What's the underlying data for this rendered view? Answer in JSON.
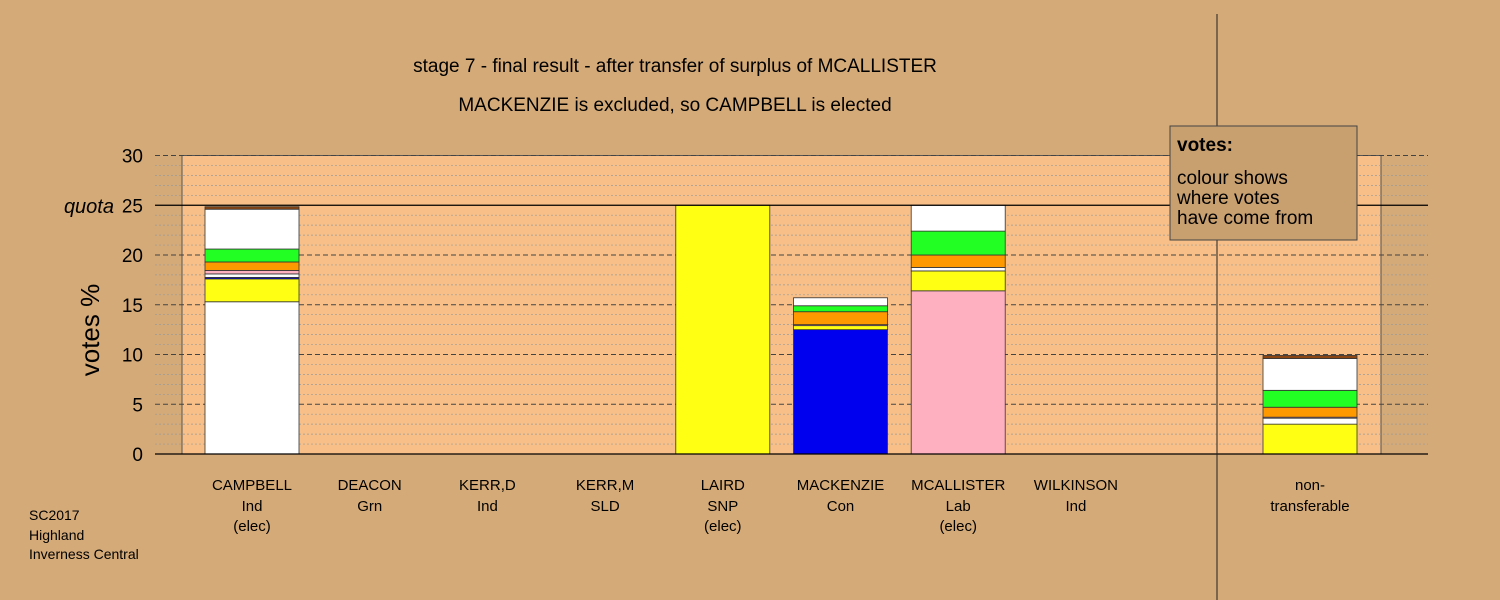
{
  "chart_data": {
    "type": "bar",
    "stacked": true,
    "title": "stage 7 - final result - after transfer of surplus of MCALLISTER",
    "subtitle": "MACKENZIE is excluded, so CAMPBELL is elected",
    "ylabel": "votes %",
    "ylim": [
      0,
      30
    ],
    "yticks": [
      "0",
      "5",
      "10",
      "15",
      "20",
      "25",
      "30"
    ],
    "quota": {
      "label": "quota",
      "value": 25
    },
    "grid": true,
    "legend": {
      "position": "top-right",
      "heading": "votes:",
      "lines": [
        "colour shows",
        "where votes",
        "have come from"
      ]
    },
    "colors": {
      "background": "#d4aa78",
      "plot_area": "#f8c088",
      "own": "#ffffff",
      "ind": "#ffffff",
      "snp": "#ffff14",
      "con": "#0000ee",
      "lab": "#ffb0c0",
      "sld": "#ff9900",
      "grn": "#22ff22",
      "border": "#8b4513"
    },
    "candidates": [
      {
        "name": "CAMPBELL",
        "party": "Ind",
        "status": "(elec)",
        "segments": [
          {
            "from": "CAMPBELL",
            "value": 15.3,
            "color": "#ffffff"
          },
          {
            "from": "LAIRD",
            "value": 2.3,
            "color": "#ffff14"
          },
          {
            "from": "MACKENZIE",
            "value": 0.15,
            "color": "#0000ee"
          },
          {
            "from": "other",
            "value": 0.35,
            "color": "#ffffff"
          },
          {
            "from": "MCALLISTER",
            "value": 0.35,
            "color": "#ffb0c0"
          },
          {
            "from": "KERR,M",
            "value": 0.85,
            "color": "#ff9900"
          },
          {
            "from": "DEACON",
            "value": 1.3,
            "color": "#22ff22"
          },
          {
            "from": "KERR,D",
            "value": 4.0,
            "color": "#ffffff"
          },
          {
            "from": "WILKINSON",
            "value": 0.25,
            "color": "#8b4513"
          }
        ]
      },
      {
        "name": "DEACON",
        "party": "Grn",
        "status": "",
        "segments": []
      },
      {
        "name": "KERR,D",
        "party": "Ind",
        "status": "",
        "segments": []
      },
      {
        "name": "KERR,M",
        "party": "SLD",
        "status": "",
        "segments": []
      },
      {
        "name": "LAIRD",
        "party": "SNP",
        "status": "(elec)",
        "segments": [
          {
            "from": "LAIRD",
            "value": 25.0,
            "color": "#ffff14"
          }
        ]
      },
      {
        "name": "MACKENZIE",
        "party": "Con",
        "status": "",
        "segments": [
          {
            "from": "MACKENZIE",
            "value": 12.5,
            "color": "#0000ee"
          },
          {
            "from": "LAIRD",
            "value": 0.4,
            "color": "#ffff14"
          },
          {
            "from": "MCALLISTER",
            "value": 0.1,
            "color": "#ffb0c0"
          },
          {
            "from": "KERR,M",
            "value": 1.3,
            "color": "#ff9900"
          },
          {
            "from": "DEACON",
            "value": 0.6,
            "color": "#22ff22"
          },
          {
            "from": "KERR,D",
            "value": 0.8,
            "color": "#ffffff"
          }
        ]
      },
      {
        "name": "MCALLISTER",
        "party": "Lab",
        "status": "(elec)",
        "segments": [
          {
            "from": "MCALLISTER",
            "value": 16.4,
            "color": "#ffb0c0"
          },
          {
            "from": "LAIRD",
            "value": 2.0,
            "color": "#ffff14"
          },
          {
            "from": "other",
            "value": 0.35,
            "color": "#ffffff"
          },
          {
            "from": "KERR,M",
            "value": 1.25,
            "color": "#ff9900"
          },
          {
            "from": "DEACON",
            "value": 2.4,
            "color": "#22ff22"
          },
          {
            "from": "KERR,D",
            "value": 2.6,
            "color": "#ffffff"
          }
        ]
      },
      {
        "name": "WILKINSON",
        "party": "Ind",
        "status": "",
        "segments": []
      }
    ],
    "nontransferable": {
      "label_line1": "non-",
      "label_line2": "transferable",
      "segments": [
        {
          "from": "LAIRD",
          "value": 3.0,
          "color": "#ffff14"
        },
        {
          "from": "other",
          "value": 0.6,
          "color": "#ffffff"
        },
        {
          "from": "MCALLISTER",
          "value": 0.1,
          "color": "#ffb0c0"
        },
        {
          "from": "KERR,M",
          "value": 1.0,
          "color": "#ff9900"
        },
        {
          "from": "DEACON",
          "value": 1.7,
          "color": "#22ff22"
        },
        {
          "from": "KERR,D",
          "value": 3.2,
          "color": "#ffffff"
        },
        {
          "from": "WILKINSON",
          "value": 0.3,
          "color": "#8b4513"
        }
      ]
    }
  },
  "footer": {
    "line1": "SC2017",
    "line2": "Highland",
    "line3": "Inverness Central"
  }
}
